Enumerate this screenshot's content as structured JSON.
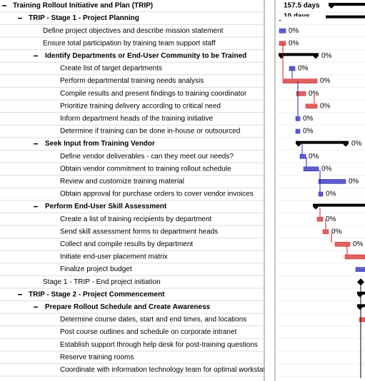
{
  "header": {
    "duration": "157.5 days",
    "stage_duration": "10 days"
  },
  "tasks": [
    {
      "task": "Training Rollout Initiative and Plan (TRIP)"
    },
    {
      "task": "TRIP - Stage 1 - Project Planning"
    },
    {
      "task": "Define project objectives and describe mission statement",
      "complete": "0%"
    },
    {
      "task": "Ensure total participation by training team support staff",
      "complete": "0%"
    },
    {
      "task": "Identify Departments or End-User Community to be Trained",
      "complete": "0%"
    },
    {
      "task": "Create list of target departments",
      "complete": "0%"
    },
    {
      "task": "Perform departmental training needs analysis",
      "complete": "0%"
    },
    {
      "task": "Compile results and present findings to training coordinator",
      "complete": "0%"
    },
    {
      "task": "Prioritize training delivery according to critical need",
      "complete": "0%"
    },
    {
      "task": "Inform department heads of the training initiative",
      "complete": "0%"
    },
    {
      "task": "Determine if training can be done in-house or outsourced",
      "complete": "0%"
    },
    {
      "task": "Seek Input from Training Vendor",
      "complete": "0%"
    },
    {
      "task": "Define vendor deliverables - can they meet our needs?",
      "complete": "0%"
    },
    {
      "task": "Obtain vendor commitment to training rollout schedule",
      "complete": "0%"
    },
    {
      "task": "Review and customize training material",
      "complete": "0%"
    },
    {
      "task": "Obtain approval for purchase orders to cover vendor invoices",
      "complete": "0%"
    },
    {
      "task": "Perform End-User Skill Assessment"
    },
    {
      "task": "Create a list of training recipients by department",
      "complete": "0%"
    },
    {
      "task": "Send skill assessment forms to department heads",
      "complete": "0%"
    },
    {
      "task": "Collect and compile results by department",
      "complete": "0%"
    },
    {
      "task": "Initiate end-user placement matrix"
    },
    {
      "task": "Finalize project budget"
    },
    {
      "task": "Stage 1 - TRIP - End project initiation"
    },
    {
      "task": "TRIP - Stage 2 - Project Commencement"
    },
    {
      "task": "Prepare Rollout Schedule and Create Awareness"
    },
    {
      "task": "Determine course dates, start and end times, and locations"
    },
    {
      "task": "Post course outlines and schedule on corporate intranet"
    },
    {
      "task": "Establish support through help desk for post-training questions"
    },
    {
      "task": "Reserve training rooms"
    },
    {
      "task": "Coordinate with information technology team for optimal workstation setup"
    }
  ]
}
